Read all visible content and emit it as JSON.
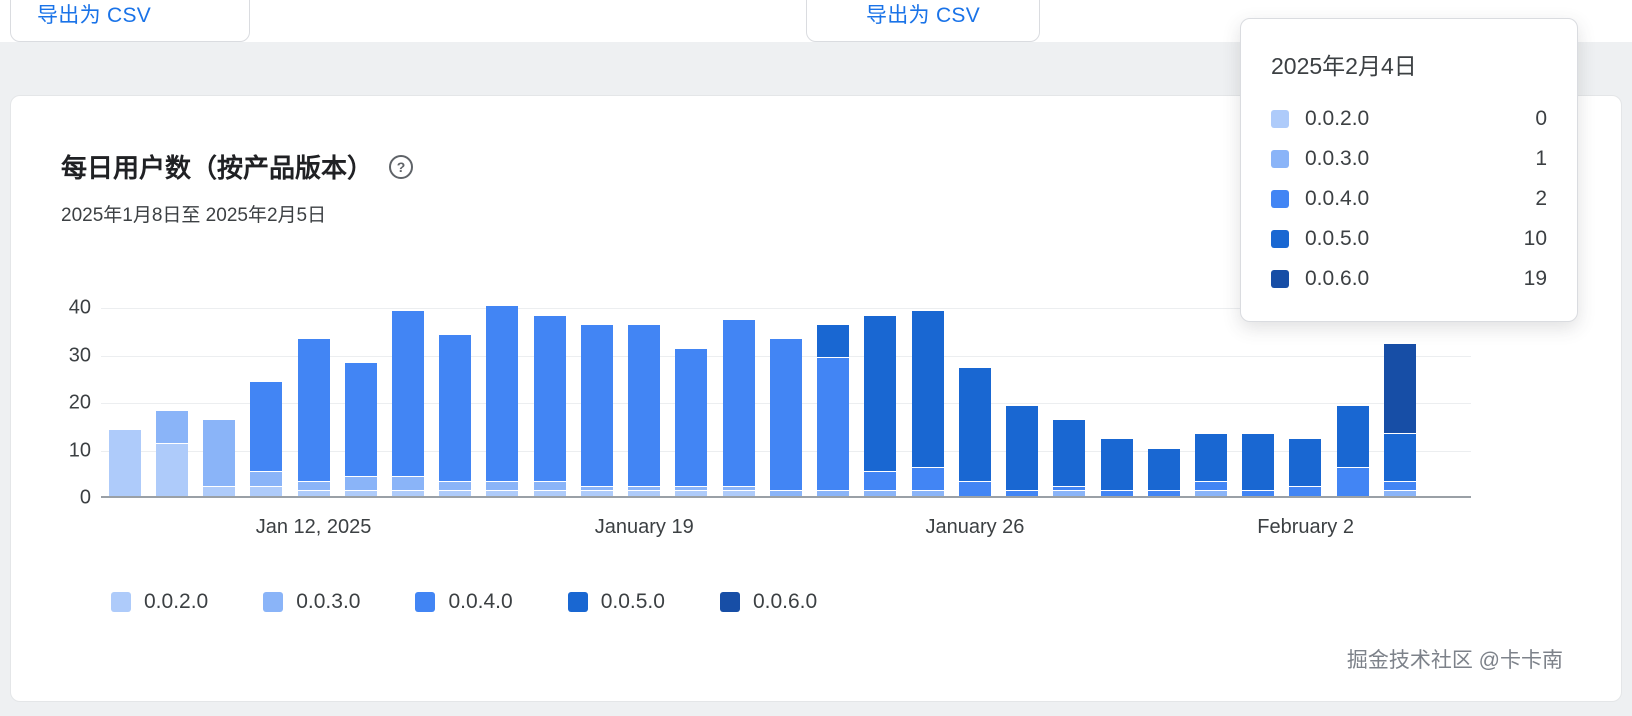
{
  "page": {
    "watermark": "掘金技术社区 @卡卡南"
  },
  "top_bar": {
    "export_csv_left": "导出为 CSV",
    "export_csv_middle": "导出为 CSV"
  },
  "chart_card": {
    "title": "每日用户数（按产品版本）",
    "help_glyph": "?",
    "date_range": "2025年1月8日至 2025年2月5日"
  },
  "tooltip": {
    "date": "2025年2月4日",
    "rows": [
      {
        "label": "0.0.2.0",
        "value": "0",
        "color": "#aecbfa"
      },
      {
        "label": "0.0.3.0",
        "value": "1",
        "color": "#8ab4f8"
      },
      {
        "label": "0.0.4.0",
        "value": "2",
        "color": "#4285f4"
      },
      {
        "label": "0.0.5.0",
        "value": "10",
        "color": "#1967d2"
      },
      {
        "label": "0.0.6.0",
        "value": "19",
        "color": "#174ea6"
      }
    ]
  },
  "chart_data": {
    "type": "bar",
    "stacked": true,
    "title": "每日用户数（按产品版本）",
    "subtitle": "2025年1月8日至 2025年2月5日",
    "ylim": [
      0,
      40
    ],
    "y_ticks": [
      0,
      10,
      20,
      30,
      40
    ],
    "grid": "faint-horizontal",
    "legend_position": "bottom",
    "hovered_bar": "Feb 4",
    "categories": [
      "Jan 8",
      "Jan 9",
      "Jan 10",
      "Jan 11",
      "Jan 12",
      "Jan 13",
      "Jan 14",
      "Jan 15",
      "Jan 16",
      "Jan 17",
      "Jan 18",
      "Jan 19",
      "Jan 20",
      "Jan 21",
      "Jan 22",
      "Jan 23",
      "Jan 24",
      "Jan 25",
      "Jan 26",
      "Jan 27",
      "Jan 28",
      "Jan 29",
      "Jan 30",
      "Jan 31",
      "Feb 1",
      "Feb 2",
      "Feb 3",
      "Feb 4",
      "Feb 5"
    ],
    "x_tick_labels": [
      {
        "index": 4,
        "label": "Jan 12, 2025"
      },
      {
        "index": 11,
        "label": "January 19"
      },
      {
        "index": 18,
        "label": "January 26"
      },
      {
        "index": 25,
        "label": "February 2"
      }
    ],
    "series": [
      {
        "name": "0.0.2.0",
        "color": "#aecbfa",
        "values": [
          14,
          11,
          2,
          2,
          1,
          1,
          1,
          1,
          1,
          1,
          1,
          1,
          1,
          1,
          0,
          0,
          0,
          0,
          0,
          0,
          0,
          0,
          0,
          0,
          0,
          0,
          0,
          0,
          0
        ]
      },
      {
        "name": "0.0.3.0",
        "color": "#8ab4f8",
        "values": [
          0,
          7,
          14,
          3,
          2,
          3,
          3,
          2,
          2,
          2,
          1,
          1,
          1,
          1,
          1,
          1,
          1,
          1,
          0,
          0,
          1,
          0,
          0,
          1,
          0,
          0,
          0,
          1,
          0
        ]
      },
      {
        "name": "0.0.4.0",
        "color": "#4285f4",
        "values": [
          0,
          0,
          0,
          19,
          30,
          24,
          35,
          31,
          37,
          35,
          34,
          34,
          29,
          35,
          32,
          28,
          4,
          5,
          3,
          1,
          1,
          1,
          1,
          2,
          1,
          2,
          6,
          2,
          0
        ]
      },
      {
        "name": "0.0.5.0",
        "color": "#1967d2",
        "values": [
          0,
          0,
          0,
          0,
          0,
          0,
          0,
          0,
          0,
          0,
          0,
          0,
          0,
          0,
          0,
          7,
          33,
          33,
          24,
          18,
          14,
          11,
          9,
          10,
          12,
          10,
          13,
          10,
          0
        ]
      },
      {
        "name": "0.0.6.0",
        "color": "#174ea6",
        "values": [
          0,
          0,
          0,
          0,
          0,
          0,
          0,
          0,
          0,
          0,
          0,
          0,
          0,
          0,
          0,
          0,
          0,
          0,
          0,
          0,
          0,
          0,
          0,
          0,
          0,
          0,
          0,
          19,
          0
        ]
      }
    ]
  }
}
